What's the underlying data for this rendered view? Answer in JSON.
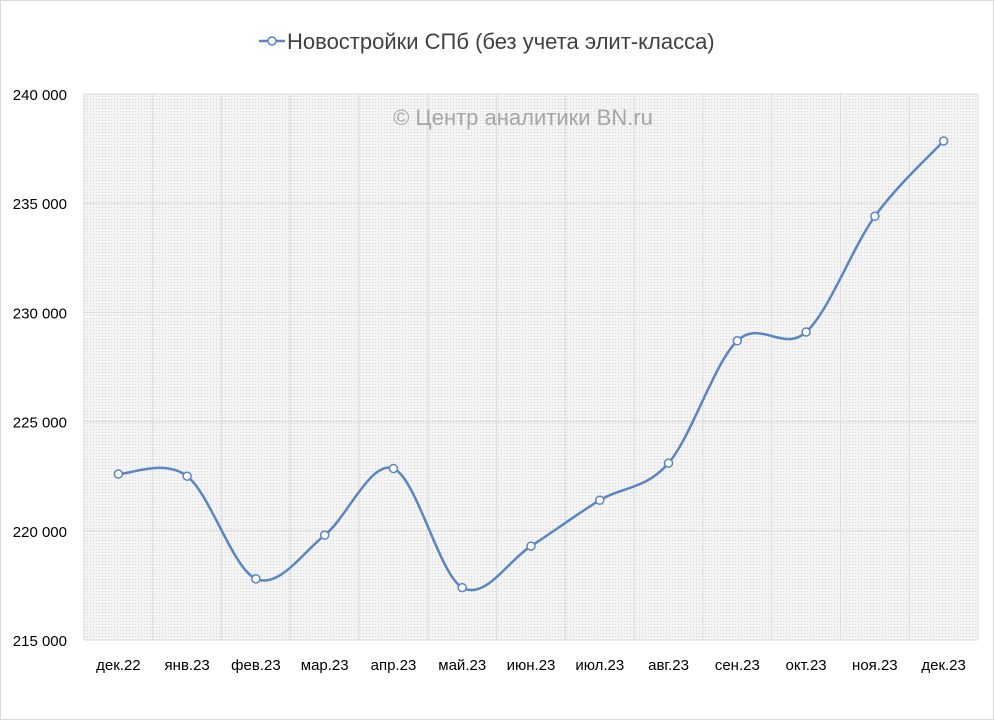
{
  "chart_data": {
    "type": "line",
    "smooth": true,
    "legend": {
      "position": "top",
      "icon": "line-with-circle-marker-icon"
    },
    "watermark": "© Центр аналитики BN.ru",
    "categories": [
      "дек.22",
      "янв.23",
      "фев.23",
      "мар.23",
      "апр.23",
      "май.23",
      "июн.23",
      "июл.23",
      "авг.23",
      "сен.23",
      "окт.23",
      "ноя.23",
      "дек.23"
    ],
    "series": [
      {
        "name": "Новостройки СПб (без учета элит-класса)",
        "color": "#5b85c2",
        "values": [
          222600,
          222500,
          217800,
          219800,
          222850,
          217400,
          219300,
          221400,
          223100,
          228700,
          229100,
          234400,
          237850
        ]
      }
    ],
    "yticks": [
      "215 000",
      "220 000",
      "225 000",
      "230 000",
      "235 000",
      "240 000"
    ],
    "ylim": [
      215000,
      240000
    ],
    "grid": true,
    "plot_background": "#f2f2f2",
    "grid_color": "#dcdcdc",
    "text_color": "#000000",
    "watermark_color": "#a6a6a6"
  }
}
